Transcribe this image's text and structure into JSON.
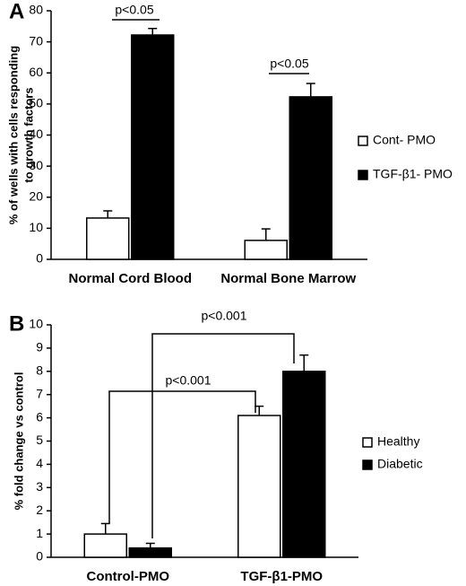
{
  "chart_data": [
    {
      "type": "bar",
      "panel_label": "A",
      "ylabel": [
        "% of wells with cells responding",
        "to growth factors"
      ],
      "categories": [
        "Normal Cord Blood",
        "Normal Bone Marrow"
      ],
      "series": [
        {
          "name": "Cont- PMO",
          "color": "#ffffff",
          "values": [
            13.3,
            6.1
          ],
          "errors": [
            2.3,
            3.7
          ]
        },
        {
          "name": "TGF-β1- PMO",
          "color": "#000000",
          "values": [
            72.2,
            52.3
          ],
          "errors": [
            2.1,
            4.3
          ]
        }
      ],
      "ylim": [
        0,
        80
      ],
      "yticks": [
        0,
        10,
        20,
        30,
        40,
        50,
        60,
        70,
        80
      ],
      "legend": "right",
      "annotations": [
        "p<0.05",
        "p<0.05"
      ]
    },
    {
      "type": "bar",
      "panel_label": "B",
      "ylabel": [
        "% fold change vs control"
      ],
      "categories": [
        "Control-PMO",
        "TGF-β1-PMO"
      ],
      "series": [
        {
          "name": "Healthy",
          "color": "#ffffff",
          "values": [
            1.0,
            6.1
          ],
          "errors": [
            0.45,
            0.4
          ]
        },
        {
          "name": "Diabetic",
          "color": "#000000",
          "values": [
            0.4,
            8.0
          ],
          "errors": [
            0.2,
            0.7
          ]
        }
      ],
      "ylim": [
        0,
        10
      ],
      "yticks": [
        0,
        1,
        2,
        3,
        4,
        5,
        6,
        7,
        8,
        9,
        10
      ],
      "legend": "right",
      "annotations": [
        "p<0.001",
        "p<0.001"
      ]
    }
  ]
}
